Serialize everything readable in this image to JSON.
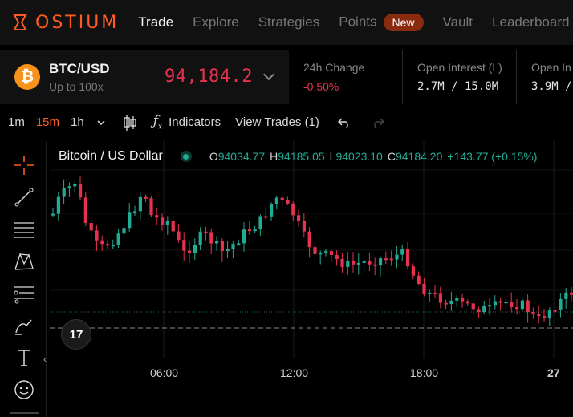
{
  "brand": {
    "name": "OSTIUM",
    "accent": "#ff5a1f"
  },
  "nav": {
    "items": [
      {
        "label": "Trade"
      },
      {
        "label": "Explore"
      },
      {
        "label": "Strategies"
      },
      {
        "label": "Points"
      },
      {
        "label": "Vault"
      },
      {
        "label": "Leaderboard"
      }
    ],
    "points_badge": "New"
  },
  "market": {
    "pair": "BTC/USD",
    "leverage": "Up to 100x",
    "price": "94,184.2",
    "icon": "bitcoin-icon"
  },
  "stats": [
    {
      "label": "24h Change",
      "value": "-0.50%"
    },
    {
      "label": "Open Interest (L)",
      "value": "2.7M / 15.0M"
    },
    {
      "label": "Open In",
      "value": "3.9M /"
    }
  ],
  "toolbar": {
    "intervals": [
      "1m",
      "15m",
      "1h"
    ],
    "active_interval": "15m",
    "indicators_label": "Indicators",
    "view_trades_label": "View Trades (1)"
  },
  "legend": {
    "title": "Bitcoin / US Dollar",
    "o_label": "O",
    "o_value": "94034.77",
    "h_label": "H",
    "h_value": "94185.05",
    "l_label": "L",
    "l_value": "94023.10",
    "c_label": "C",
    "c_value": "94184.20",
    "change": "+143.77 (+0.15%)"
  },
  "time_axis": [
    "06:00",
    "12:00",
    "18:00",
    "27"
  ],
  "colors": {
    "up": "#22ab94",
    "down": "#e5334f"
  },
  "tv_badge": "17",
  "tools": [
    "crosshair-icon",
    "trend-line-icon",
    "fib-icon",
    "pattern-icon",
    "measure-icon",
    "brush-icon",
    "text-icon",
    "emoji-icon"
  ]
}
